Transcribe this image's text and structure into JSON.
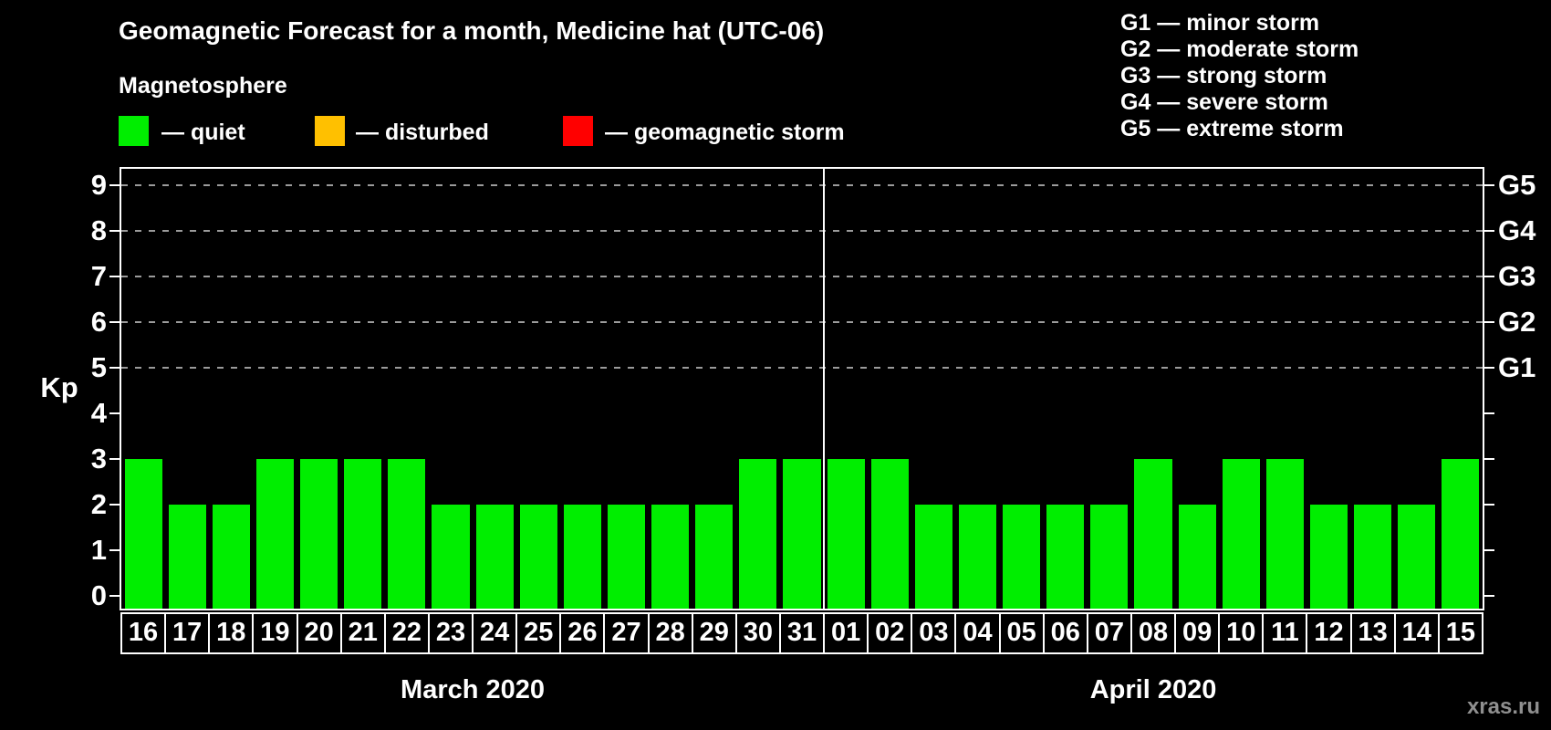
{
  "title": "Geomagnetic Forecast for a month, Medicine hat (UTC-06)",
  "subtitle": "Magnetosphere",
  "legend": {
    "items": [
      {
        "name": "quiet",
        "label": "— quiet",
        "color": "#00ee00"
      },
      {
        "name": "disturbed",
        "label": "— disturbed",
        "color": "#ffc000"
      },
      {
        "name": "geomagnetic-storm",
        "label": "— geomagnetic storm",
        "color": "#ff0000"
      }
    ]
  },
  "g_scale_legend": [
    "G1 — minor storm",
    "G2 — moderate storm",
    "G3 — strong storm",
    "G4 — severe storm",
    "G5 — extreme storm"
  ],
  "watermark": "xras.ru",
  "chart_data": {
    "type": "bar",
    "ylabel": "Kp",
    "ylim": [
      0,
      9
    ],
    "y_ticks": [
      0,
      1,
      2,
      3,
      4,
      5,
      6,
      7,
      8,
      9
    ],
    "grid_kp_levels": [
      5,
      6,
      7,
      8,
      9
    ],
    "right_axis_labels": [
      {
        "label": "G1",
        "kp": 5
      },
      {
        "label": "G2",
        "kp": 6
      },
      {
        "label": "G3",
        "kp": 7
      },
      {
        "label": "G4",
        "kp": 8
      },
      {
        "label": "G5",
        "kp": 9
      }
    ],
    "kp_colors": {
      "quiet": "#00ee00",
      "disturbed": "#ffc000",
      "storm": "#ff0000"
    },
    "months": [
      {
        "label": "March 2020",
        "days": [
          "16",
          "17",
          "18",
          "19",
          "20",
          "21",
          "22",
          "23",
          "24",
          "25",
          "26",
          "27",
          "28",
          "29",
          "30",
          "31"
        ],
        "values": [
          3,
          2,
          2,
          3,
          3,
          3,
          3,
          2,
          2,
          2,
          2,
          2,
          2,
          2,
          3,
          3
        ]
      },
      {
        "label": "April 2020",
        "days": [
          "01",
          "02",
          "03",
          "04",
          "05",
          "06",
          "07",
          "08",
          "09",
          "10",
          "11",
          "12",
          "13",
          "14",
          "15"
        ],
        "values": [
          3,
          3,
          2,
          2,
          2,
          2,
          2,
          3,
          2,
          3,
          3,
          2,
          2,
          2,
          3
        ]
      }
    ]
  }
}
